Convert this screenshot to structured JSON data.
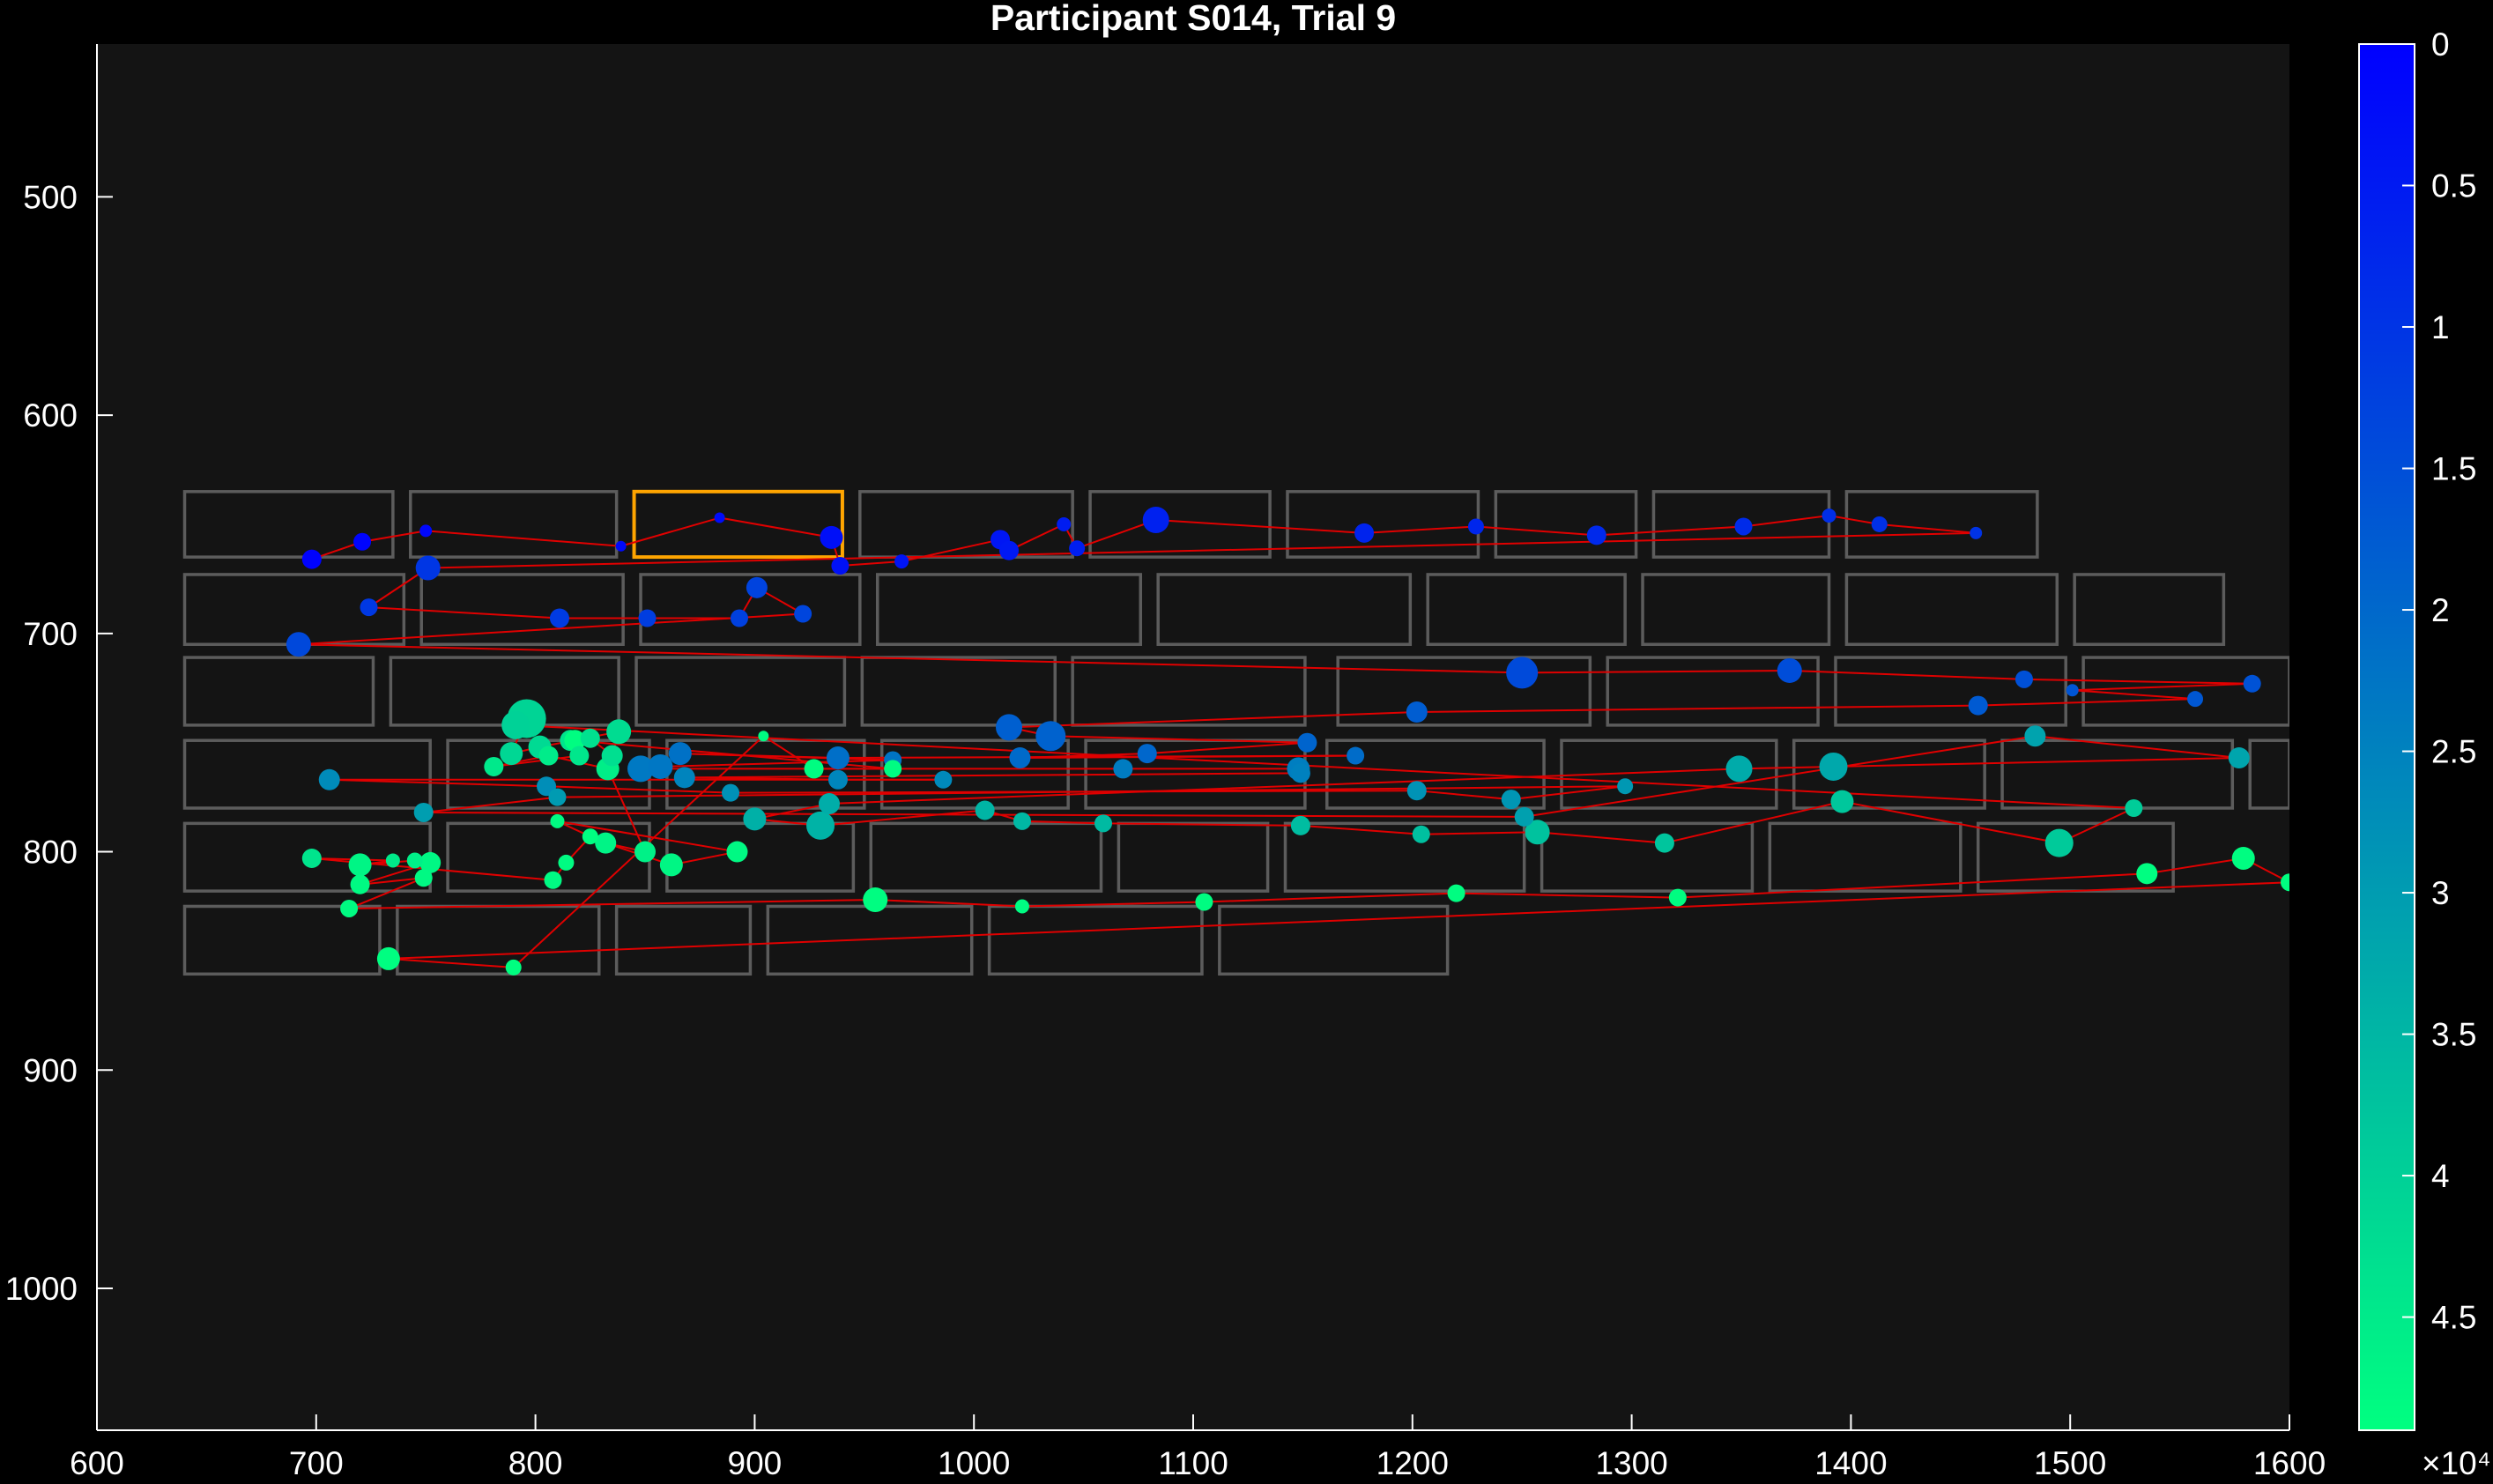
{
  "chart_data": {
    "type": "scatter",
    "title": "Participant S014, Trial 9",
    "xlabel": "",
    "ylabel": "",
    "xlim": [
      600,
      1600
    ],
    "ylim": [
      430,
      1065
    ],
    "y_reversed": true,
    "x_ticks": [
      600,
      700,
      800,
      900,
      1000,
      1100,
      1200,
      1300,
      1400,
      1500,
      1600
    ],
    "y_ticks": [
      500,
      600,
      700,
      800,
      900,
      1000
    ],
    "grid": false,
    "colorbar": {
      "min": 0,
      "max": 49000,
      "ticks": [
        0,
        0.5,
        1,
        1.5,
        2,
        2.5,
        3,
        3.5,
        4,
        4.5
      ],
      "tick_labels": [
        "0",
        "0.5",
        "1",
        "1.5",
        "2",
        "2.5",
        "3",
        "3.5",
        "4",
        "4.5"
      ],
      "exponent_label": "×10⁴",
      "color_start": "#0000ff",
      "color_end": "#00ff80",
      "reversed": true
    },
    "colors": {
      "figure_bg": "#000000",
      "axes_bg": "#141414",
      "word_box": "#5c5c5c",
      "highlight_box": "#ffa500",
      "scanpath": "#e00000"
    },
    "word_boxes": [
      [
        640,
        635,
        735,
        665
      ],
      [
        743,
        635,
        837,
        665
      ],
      [
        845,
        635,
        940,
        665
      ],
      [
        948,
        635,
        1045,
        665
      ],
      [
        1053,
        635,
        1135,
        665
      ],
      [
        1143,
        635,
        1230,
        665
      ],
      [
        1238,
        635,
        1302,
        665
      ],
      [
        1310,
        635,
        1390,
        665
      ],
      [
        1398,
        635,
        1485,
        665
      ],
      [
        640,
        673,
        740,
        705
      ],
      [
        748,
        673,
        840,
        705
      ],
      [
        848,
        673,
        948,
        705
      ],
      [
        956,
        673,
        1076,
        705
      ],
      [
        1084,
        673,
        1199,
        705
      ],
      [
        1207,
        673,
        1297,
        705
      ],
      [
        1305,
        673,
        1390,
        705
      ],
      [
        1398,
        673,
        1494,
        705
      ],
      [
        1502,
        673,
        1570,
        705
      ],
      [
        640,
        711,
        726,
        742
      ],
      [
        734,
        711,
        838,
        742
      ],
      [
        846,
        711,
        941,
        742
      ],
      [
        949,
        711,
        1037,
        742
      ],
      [
        1045,
        711,
        1151,
        742
      ],
      [
        1166,
        711,
        1281,
        742
      ],
      [
        1289,
        711,
        1385,
        742
      ],
      [
        1393,
        711,
        1498,
        742
      ],
      [
        1506,
        711,
        1600,
        742
      ],
      [
        640,
        749,
        752,
        780
      ],
      [
        760,
        749,
        852,
        780
      ],
      [
        860,
        749,
        950,
        780
      ],
      [
        958,
        749,
        1043,
        780
      ],
      [
        1051,
        749,
        1151,
        780
      ],
      [
        1161,
        749,
        1260,
        780
      ],
      [
        1268,
        749,
        1366,
        780
      ],
      [
        1374,
        749,
        1461,
        780
      ],
      [
        1469,
        749,
        1574,
        780
      ],
      [
        1582,
        749,
        1600,
        780
      ],
      [
        640,
        787,
        752,
        818
      ],
      [
        760,
        787,
        852,
        818
      ],
      [
        860,
        787,
        945,
        818
      ],
      [
        953,
        787,
        1058,
        818
      ],
      [
        1066,
        787,
        1134,
        818
      ],
      [
        1142,
        787,
        1251,
        818
      ],
      [
        1259,
        787,
        1355,
        818
      ],
      [
        1363,
        787,
        1450,
        818
      ],
      [
        1458,
        787,
        1547,
        818
      ],
      [
        640,
        825,
        729,
        856
      ],
      [
        737,
        825,
        829,
        856
      ],
      [
        837,
        825,
        898,
        856
      ],
      [
        906,
        825,
        999,
        856
      ],
      [
        1007,
        825,
        1104,
        856
      ],
      [
        1112,
        825,
        1216,
        856
      ]
    ],
    "highlight_box": [
      845,
      635,
      940,
      665
    ],
    "fixations": [
      {
        "x": 698,
        "y": 666,
        "d": 22,
        "t": 300
      },
      {
        "x": 721,
        "y": 658,
        "d": 20,
        "t": 800
      },
      {
        "x": 750,
        "y": 653,
        "d": 14,
        "t": 1300
      },
      {
        "x": 839,
        "y": 660,
        "d": 12,
        "t": 1800
      },
      {
        "x": 884,
        "y": 647,
        "d": 12,
        "t": 2300
      },
      {
        "x": 935,
        "y": 656,
        "d": 26,
        "t": 2800
      },
      {
        "x": 939,
        "y": 669,
        "d": 20,
        "t": 3300
      },
      {
        "x": 967,
        "y": 667,
        "d": 16,
        "t": 3800
      },
      {
        "x": 1012,
        "y": 657,
        "d": 22,
        "t": 4300
      },
      {
        "x": 1016,
        "y": 662,
        "d": 22,
        "t": 4800
      },
      {
        "x": 1041,
        "y": 650,
        "d": 16,
        "t": 5300
      },
      {
        "x": 1047,
        "y": 661,
        "d": 18,
        "t": 5800
      },
      {
        "x": 1083,
        "y": 648,
        "d": 30,
        "t": 6300
      },
      {
        "x": 1178,
        "y": 654,
        "d": 22,
        "t": 6800
      },
      {
        "x": 1229,
        "y": 651,
        "d": 18,
        "t": 7300
      },
      {
        "x": 1284,
        "y": 655,
        "d": 22,
        "t": 7800
      },
      {
        "x": 1351,
        "y": 651,
        "d": 20,
        "t": 8300
      },
      {
        "x": 1390,
        "y": 646,
        "d": 16,
        "t": 8800
      },
      {
        "x": 1413,
        "y": 650,
        "d": 18,
        "t": 9300
      },
      {
        "x": 1457,
        "y": 654,
        "d": 14,
        "t": 9800
      },
      {
        "x": 751,
        "y": 670,
        "d": 28,
        "t": 10300
      },
      {
        "x": 724,
        "y": 688,
        "d": 20,
        "t": 10800
      },
      {
        "x": 811,
        "y": 693,
        "d": 22,
        "t": 11300
      },
      {
        "x": 851,
        "y": 693,
        "d": 20,
        "t": 11800
      },
      {
        "x": 893,
        "y": 693,
        "d": 20,
        "t": 12300
      },
      {
        "x": 901,
        "y": 679,
        "d": 24,
        "t": 12800
      },
      {
        "x": 922,
        "y": 691,
        "d": 20,
        "t": 13300
      },
      {
        "x": 692,
        "y": 705,
        "d": 28,
        "t": 13800
      },
      {
        "x": 1250,
        "y": 718,
        "d": 36,
        "t": 14300
      },
      {
        "x": 1372,
        "y": 717,
        "d": 28,
        "t": 14800
      },
      {
        "x": 1479,
        "y": 721,
        "d": 20,
        "t": 15300
      },
      {
        "x": 1583,
        "y": 723,
        "d": 20,
        "t": 15800
      },
      {
        "x": 1501,
        "y": 726,
        "d": 14,
        "t": 16300
      },
      {
        "x": 1557,
        "y": 730,
        "d": 18,
        "t": 16800
      },
      {
        "x": 1458,
        "y": 733,
        "d": 22,
        "t": 17300
      },
      {
        "x": 1202,
        "y": 736,
        "d": 24,
        "t": 17800
      },
      {
        "x": 1016,
        "y": 743,
        "d": 30,
        "t": 18300
      },
      {
        "x": 1035,
        "y": 747,
        "d": 34,
        "t": 18800
      },
      {
        "x": 1152,
        "y": 750,
        "d": 22,
        "t": 19300
      },
      {
        "x": 1079,
        "y": 755,
        "d": 22,
        "t": 19800
      },
      {
        "x": 1021,
        "y": 757,
        "d": 24,
        "t": 20300
      },
      {
        "x": 1174,
        "y": 756,
        "d": 20,
        "t": 20800
      },
      {
        "x": 938,
        "y": 757,
        "d": 26,
        "t": 21300
      },
      {
        "x": 866,
        "y": 755,
        "d": 26,
        "t": 21800
      },
      {
        "x": 963,
        "y": 758,
        "d": 20,
        "t": 22300
      },
      {
        "x": 857,
        "y": 761,
        "d": 28,
        "t": 22800
      },
      {
        "x": 848,
        "y": 762,
        "d": 30,
        "t": 23300
      },
      {
        "x": 1068,
        "y": 762,
        "d": 22,
        "t": 23800
      },
      {
        "x": 1148,
        "y": 762,
        "d": 26,
        "t": 24300
      },
      {
        "x": 1149,
        "y": 764,
        "d": 22,
        "t": 24800
      },
      {
        "x": 868,
        "y": 766,
        "d": 24,
        "t": 25300
      },
      {
        "x": 938,
        "y": 767,
        "d": 22,
        "t": 25800
      },
      {
        "x": 986,
        "y": 767,
        "d": 20,
        "t": 26300
      },
      {
        "x": 706,
        "y": 767,
        "d": 24,
        "t": 26800
      },
      {
        "x": 805,
        "y": 770,
        "d": 22,
        "t": 27300
      },
      {
        "x": 889,
        "y": 773,
        "d": 20,
        "t": 27800
      },
      {
        "x": 1202,
        "y": 772,
        "d": 22,
        "t": 28300
      },
      {
        "x": 1245,
        "y": 776,
        "d": 22,
        "t": 28800
      },
      {
        "x": 1297,
        "y": 770,
        "d": 18,
        "t": 29300
      },
      {
        "x": 810,
        "y": 775,
        "d": 20,
        "t": 29800
      },
      {
        "x": 749,
        "y": 782,
        "d": 22,
        "t": 30300
      },
      {
        "x": 1251,
        "y": 784,
        "d": 22,
        "t": 30800
      },
      {
        "x": 1484,
        "y": 747,
        "d": 24,
        "t": 31300
      },
      {
        "x": 1577,
        "y": 757,
        "d": 24,
        "t": 31800
      },
      {
        "x": 1392,
        "y": 761,
        "d": 32,
        "t": 32300
      },
      {
        "x": 1349,
        "y": 762,
        "d": 30,
        "t": 32800
      },
      {
        "x": 934,
        "y": 778,
        "d": 24,
        "t": 33300
      },
      {
        "x": 900,
        "y": 785,
        "d": 26,
        "t": 33800
      },
      {
        "x": 930,
        "y": 788,
        "d": 32,
        "t": 34300
      },
      {
        "x": 1005,
        "y": 781,
        "d": 22,
        "t": 34800
      },
      {
        "x": 1022,
        "y": 786,
        "d": 20,
        "t": 35300
      },
      {
        "x": 1059,
        "y": 787,
        "d": 20,
        "t": 35800
      },
      {
        "x": 1149,
        "y": 788,
        "d": 22,
        "t": 36300
      },
      {
        "x": 1204,
        "y": 792,
        "d": 20,
        "t": 36800
      },
      {
        "x": 1257,
        "y": 791,
        "d": 28,
        "t": 37300
      },
      {
        "x": 1315,
        "y": 796,
        "d": 22,
        "t": 37800
      },
      {
        "x": 1396,
        "y": 777,
        "d": 26,
        "t": 38300
      },
      {
        "x": 1495,
        "y": 796,
        "d": 32,
        "t": 38800
      },
      {
        "x": 1529,
        "y": 780,
        "d": 20,
        "t": 39300
      },
      {
        "x": 791,
        "y": 742,
        "d": 32,
        "t": 40300
      },
      {
        "x": 796,
        "y": 739,
        "d": 44,
        "t": 40800
      },
      {
        "x": 789,
        "y": 755,
        "d": 26,
        "t": 41300
      },
      {
        "x": 802,
        "y": 752,
        "d": 26,
        "t": 41800
      },
      {
        "x": 838,
        "y": 745,
        "d": 28,
        "t": 42300
      },
      {
        "x": 835,
        "y": 756,
        "d": 24,
        "t": 42800
      },
      {
        "x": 825,
        "y": 748,
        "d": 22,
        "t": 43300
      },
      {
        "x": 816,
        "y": 749,
        "d": 24,
        "t": 43800
      },
      {
        "x": 820,
        "y": 756,
        "d": 22,
        "t": 44300
      },
      {
        "x": 781,
        "y": 761,
        "d": 22,
        "t": 44800
      },
      {
        "x": 806,
        "y": 756,
        "d": 22,
        "t": 45300
      },
      {
        "x": 833,
        "y": 762,
        "d": 26,
        "t": 45800
      },
      {
        "x": 850,
        "y": 800,
        "d": 24,
        "t": 46300
      },
      {
        "x": 832,
        "y": 796,
        "d": 24,
        "t": 46800
      },
      {
        "x": 862,
        "y": 806,
        "d": 26,
        "t": 47300
      },
      {
        "x": 892,
        "y": 800,
        "d": 24,
        "t": 47800
      },
      {
        "x": 810,
        "y": 786,
        "d": 16,
        "t": 48300
      },
      {
        "x": 825,
        "y": 793,
        "d": 18,
        "t": 48800
      },
      {
        "x": 814,
        "y": 805,
        "d": 18,
        "t": 48300
      },
      {
        "x": 808,
        "y": 813,
        "d": 20,
        "t": 47800
      },
      {
        "x": 698,
        "y": 803,
        "d": 22,
        "t": 44000
      },
      {
        "x": 735,
        "y": 804,
        "d": 16,
        "t": 45000
      },
      {
        "x": 720,
        "y": 806,
        "d": 26,
        "t": 47000
      },
      {
        "x": 745,
        "y": 804,
        "d": 18,
        "t": 46000
      },
      {
        "x": 752,
        "y": 805,
        "d": 24,
        "t": 47500
      },
      {
        "x": 720,
        "y": 815,
        "d": 22,
        "t": 48000
      },
      {
        "x": 749,
        "y": 812,
        "d": 20,
        "t": 47800
      },
      {
        "x": 715,
        "y": 826,
        "d": 20,
        "t": 48200
      },
      {
        "x": 955,
        "y": 822,
        "d": 28,
        "t": 48600
      },
      {
        "x": 1022,
        "y": 825,
        "d": 16,
        "t": 48300
      },
      {
        "x": 1105,
        "y": 823,
        "d": 20,
        "t": 48500
      },
      {
        "x": 1220,
        "y": 819,
        "d": 20,
        "t": 48600
      },
      {
        "x": 1321,
        "y": 821,
        "d": 20,
        "t": 48700
      },
      {
        "x": 1535,
        "y": 810,
        "d": 24,
        "t": 48800
      },
      {
        "x": 1579,
        "y": 803,
        "d": 26,
        "t": 48700
      },
      {
        "x": 1600,
        "y": 814,
        "d": 20,
        "t": 48900
      },
      {
        "x": 733,
        "y": 849,
        "d": 26,
        "t": 48800
      },
      {
        "x": 790,
        "y": 853,
        "d": 18,
        "t": 48900
      },
      {
        "x": 904,
        "y": 747,
        "d": 12,
        "t": 48500
      },
      {
        "x": 927,
        "y": 762,
        "d": 22,
        "t": 48700
      },
      {
        "x": 963,
        "y": 762,
        "d": 20,
        "t": 48400
      },
      {
        "x": 818,
        "y": 749,
        "d": 24,
        "t": 48600
      }
    ],
    "scanpath_order": [
      0,
      1,
      2,
      3,
      4,
      5,
      6,
      7,
      8,
      9,
      10,
      11,
      12,
      13,
      14,
      15,
      16,
      17,
      18,
      19,
      20,
      21,
      22,
      23,
      24,
      25,
      26,
      27,
      28,
      29,
      30,
      31,
      32,
      33,
      34,
      35,
      36,
      37,
      38,
      39,
      40,
      41,
      42,
      43,
      44,
      45,
      46,
      47,
      48,
      49,
      50,
      51,
      52,
      53,
      54,
      55,
      56,
      57,
      58,
      59,
      60,
      61,
      62,
      63,
      64,
      65,
      66,
      67,
      68,
      69,
      70,
      71,
      72,
      73,
      74,
      75,
      76,
      77,
      78,
      79,
      80,
      81,
      82,
      83,
      84,
      85,
      86,
      87,
      88,
      89,
      90,
      91,
      92,
      93,
      94,
      95,
      96,
      97,
      98,
      99,
      100,
      101,
      102,
      103,
      104,
      105,
      106,
      107,
      108,
      109,
      110,
      111,
      112,
      113,
      114,
      115,
      116,
      117,
      118,
      119,
      120,
      121,
      122,
      123
    ]
  }
}
